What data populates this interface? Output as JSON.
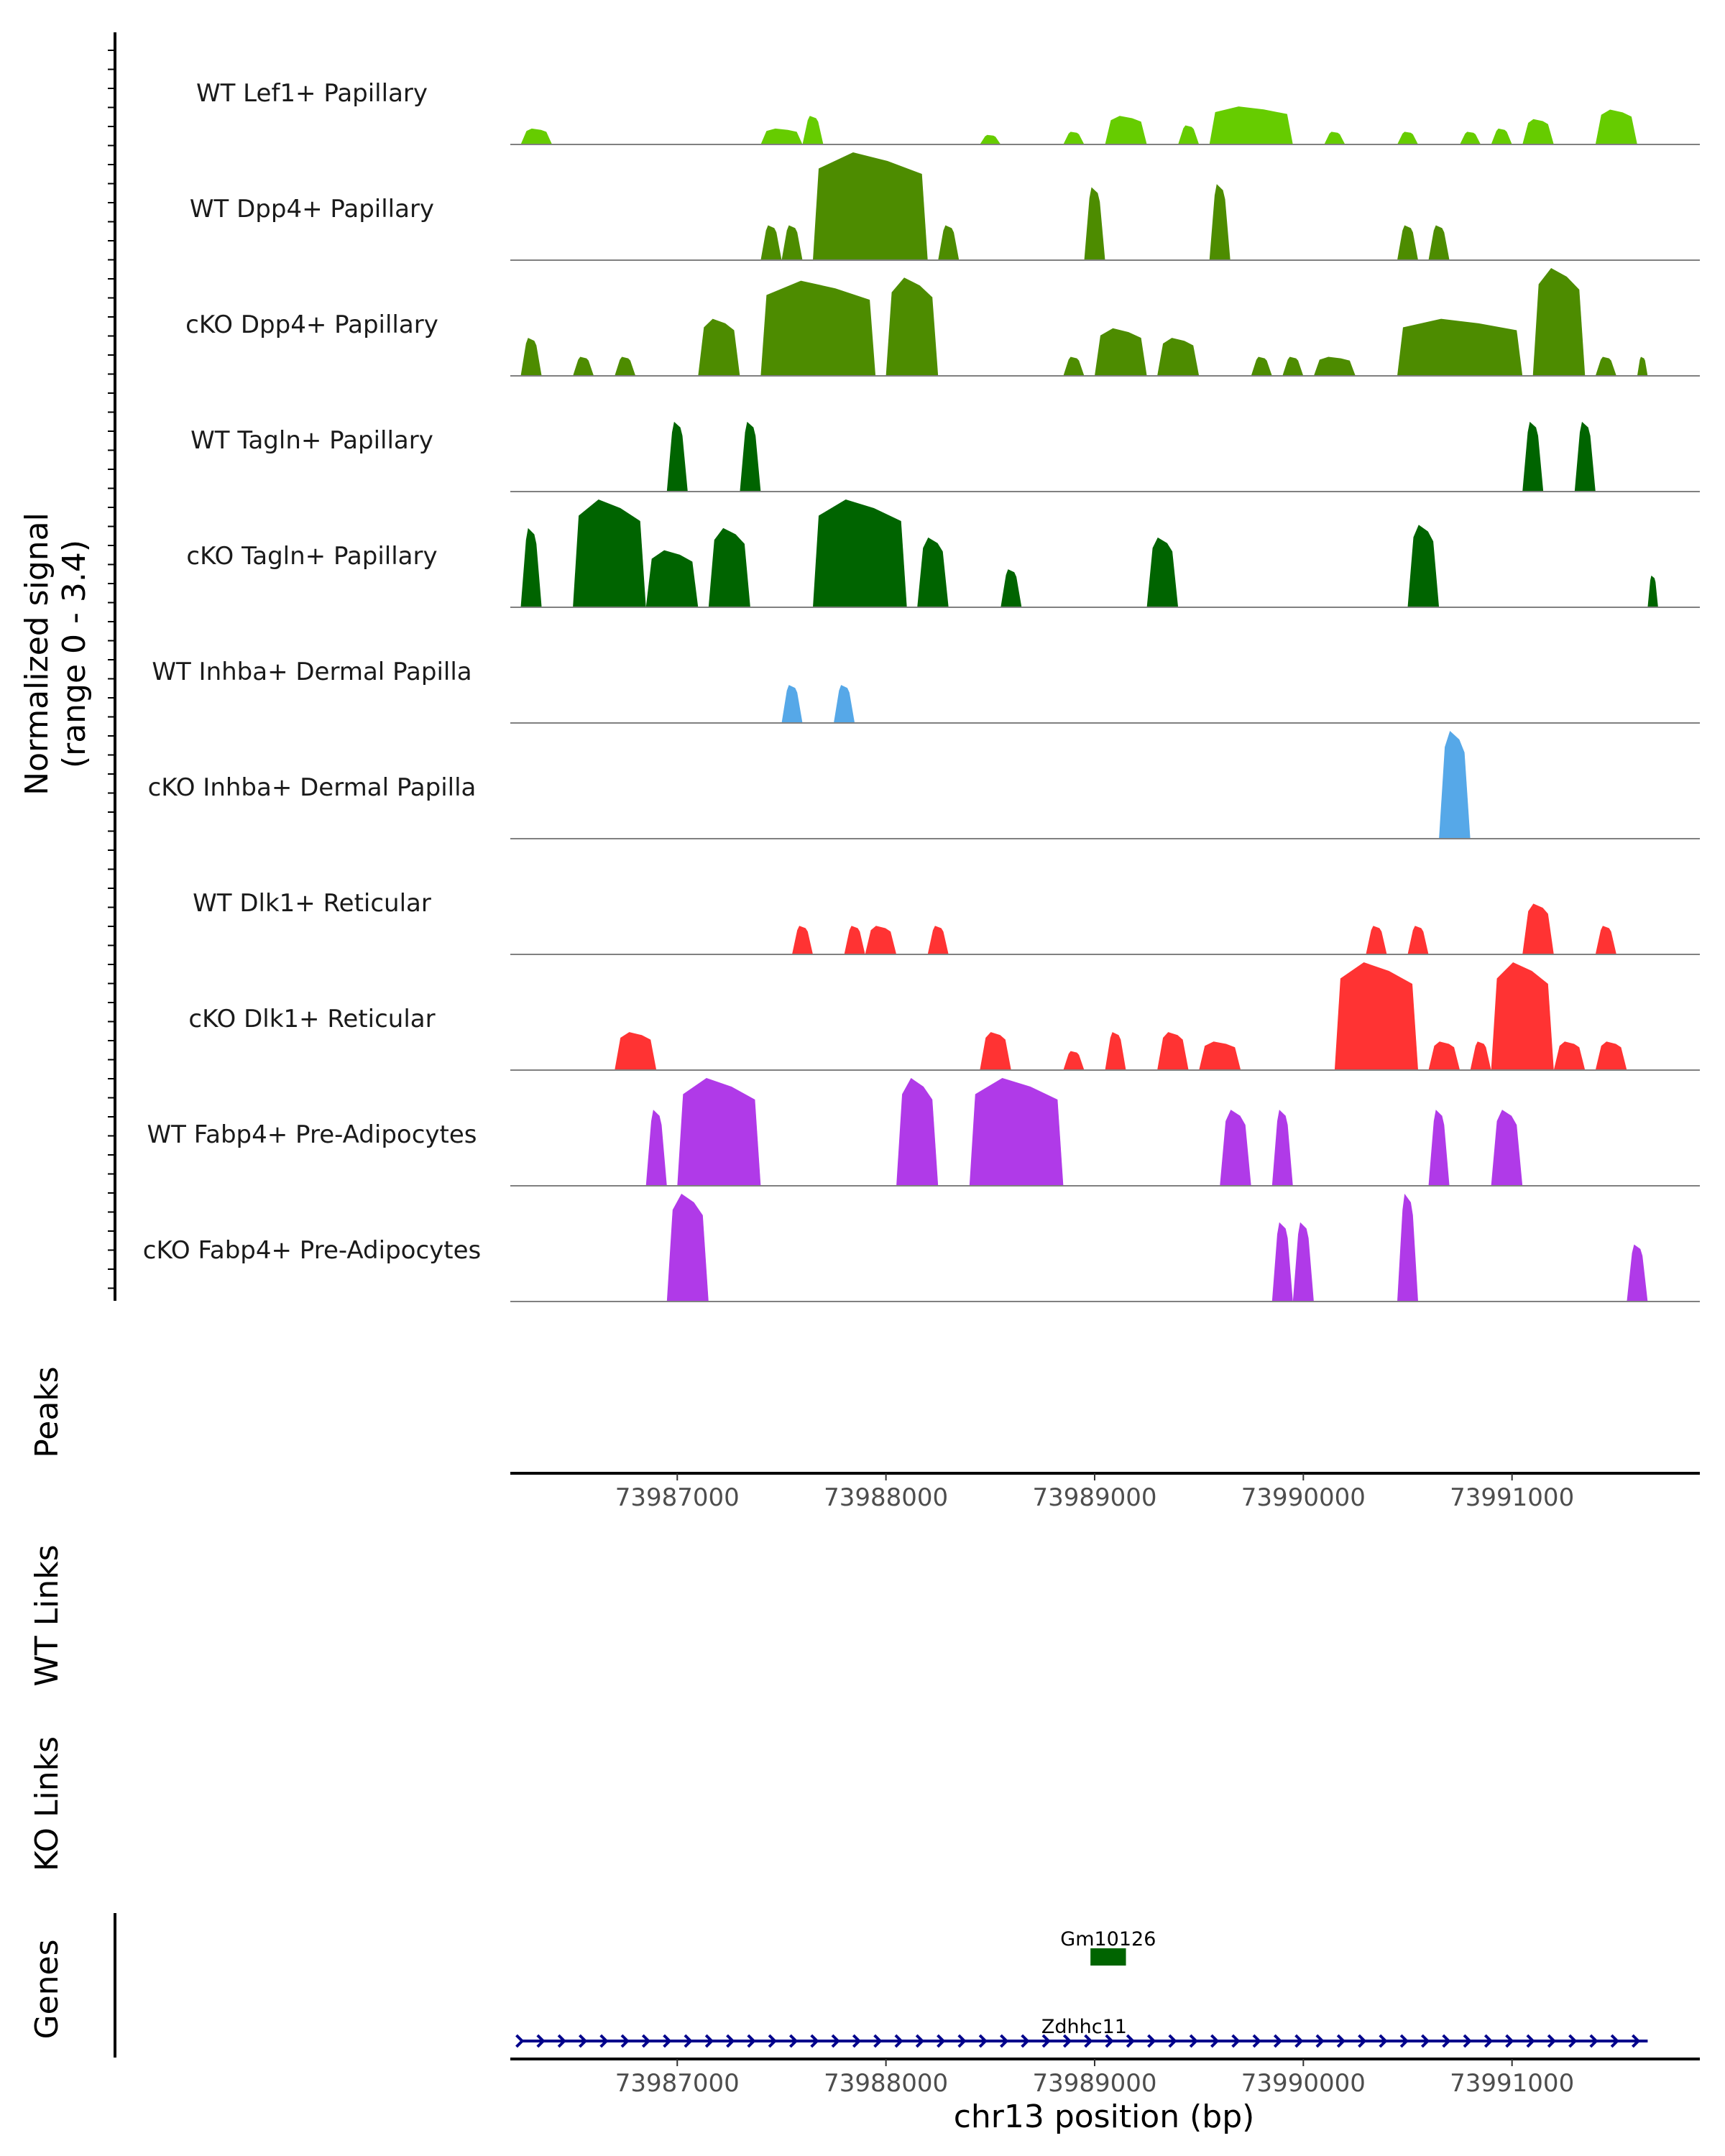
{
  "chart_data": {
    "type": "area",
    "title": "",
    "xlabel": "chr13 position (bp)",
    "ylabel": "Normalized signal\n(range 0 - 3.4)",
    "ylim": [
      0,
      3.4
    ],
    "xlim": [
      73986200,
      73991900
    ],
    "x_ticks": [
      73987000,
      73988000,
      73989000,
      73990000,
      73991000
    ],
    "panel_labels": {
      "peaks": "Peaks",
      "wt_links": "WT Links",
      "ko_links": "KO Links",
      "genes": "Genes"
    },
    "series": [
      {
        "name": "WT Lef1+ Papillary",
        "color": "#66cc00",
        "regions": [
          [
            73986250,
            73986400,
            0.5
          ],
          [
            73987400,
            73987600,
            0.5
          ],
          [
            73987600,
            73987700,
            0.9
          ],
          [
            73988450,
            73988550,
            0.3
          ],
          [
            73988850,
            73988950,
            0.4
          ],
          [
            73989050,
            73989250,
            0.9
          ],
          [
            73989400,
            73989500,
            0.6
          ],
          [
            73989550,
            73989950,
            1.2
          ],
          [
            73990100,
            73990200,
            0.4
          ],
          [
            73990450,
            73990550,
            0.4
          ],
          [
            73990750,
            73990850,
            0.4
          ],
          [
            73990900,
            73991000,
            0.5
          ],
          [
            73991050,
            73991200,
            0.8
          ],
          [
            73991400,
            73991600,
            1.1
          ]
        ]
      },
      {
        "name": "WT Dpp4+ Papillary",
        "color": "#4d8c00",
        "regions": [
          [
            73987400,
            73987500,
            1.1
          ],
          [
            73987500,
            73987600,
            1.1
          ],
          [
            73987650,
            73988200,
            3.4
          ],
          [
            73988250,
            73988350,
            1.1
          ],
          [
            73988950,
            73989050,
            2.3
          ],
          [
            73989550,
            73989650,
            2.4
          ],
          [
            73990450,
            73990550,
            1.1
          ],
          [
            73990600,
            73990700,
            1.1
          ]
        ]
      },
      {
        "name": "cKO Dpp4+ Papillary",
        "color": "#4d8c00",
        "regions": [
          [
            73986250,
            73986350,
            1.2
          ],
          [
            73986500,
            73986600,
            0.6
          ],
          [
            73986700,
            73986800,
            0.6
          ],
          [
            73987100,
            73987300,
            1.8
          ],
          [
            73987400,
            73987950,
            3.0
          ],
          [
            73988000,
            73988250,
            3.1
          ],
          [
            73988850,
            73988950,
            0.6
          ],
          [
            73989000,
            73989250,
            1.5
          ],
          [
            73989300,
            73989500,
            1.2
          ],
          [
            73989750,
            73989850,
            0.6
          ],
          [
            73989900,
            73990000,
            0.6
          ],
          [
            73990050,
            73990250,
            0.6
          ],
          [
            73990450,
            73991050,
            1.8
          ],
          [
            73991100,
            73991350,
            3.4
          ],
          [
            73991400,
            73991500,
            0.6
          ],
          [
            73991600,
            73991650,
            0.6
          ]
        ]
      },
      {
        "name": "WT Tagln+ Papillary",
        "color": "#006400",
        "regions": [
          [
            73986950,
            73987050,
            2.2
          ],
          [
            73987300,
            73987400,
            2.2
          ],
          [
            73991050,
            73991150,
            2.2
          ],
          [
            73991300,
            73991400,
            2.2
          ]
        ]
      },
      {
        "name": "cKO Tagln+ Papillary",
        "color": "#006400",
        "regions": [
          [
            73986250,
            73986350,
            2.5
          ],
          [
            73986500,
            73986850,
            3.4
          ],
          [
            73986850,
            73987100,
            1.8
          ],
          [
            73987150,
            73987350,
            2.5
          ],
          [
            73987650,
            73988100,
            3.4
          ],
          [
            73988150,
            73988300,
            2.2
          ],
          [
            73988550,
            73988650,
            1.2
          ],
          [
            73989250,
            73989400,
            2.2
          ],
          [
            73990500,
            73990650,
            2.6
          ],
          [
            73991650,
            73991700,
            1.0
          ]
        ]
      },
      {
        "name": "WT Inhba+ Dermal Papilla",
        "color": "#56a8e8",
        "regions": [
          [
            73987500,
            73987600,
            1.2
          ],
          [
            73987750,
            73987850,
            1.2
          ]
        ]
      },
      {
        "name": "cKO Inhba+ Dermal Papilla",
        "color": "#56a8e8",
        "regions": [
          [
            73990650,
            73990800,
            3.4
          ]
        ]
      },
      {
        "name": "WT Dlk1+ Reticular",
        "color": "#ff3333",
        "regions": [
          [
            73987550,
            73987650,
            0.9
          ],
          [
            73987800,
            73987900,
            0.9
          ],
          [
            73987900,
            73988050,
            0.9
          ],
          [
            73988200,
            73988300,
            0.9
          ],
          [
            73990300,
            73990400,
            0.9
          ],
          [
            73990500,
            73990600,
            0.9
          ],
          [
            73991050,
            73991200,
            1.6
          ],
          [
            73991400,
            73991500,
            0.9
          ]
        ]
      },
      {
        "name": "cKO Dlk1+ Reticular",
        "color": "#ff3333",
        "regions": [
          [
            73986700,
            73986900,
            1.2
          ],
          [
            73988450,
            73988600,
            1.2
          ],
          [
            73988850,
            73988950,
            0.6
          ],
          [
            73989050,
            73989150,
            1.2
          ],
          [
            73989300,
            73989450,
            1.2
          ],
          [
            73989500,
            73989700,
            0.9
          ],
          [
            73990150,
            73990550,
            3.4
          ],
          [
            73990600,
            73990750,
            0.9
          ],
          [
            73990800,
            73990900,
            0.9
          ],
          [
            73990900,
            73991200,
            3.4
          ],
          [
            73991200,
            73991350,
            0.9
          ],
          [
            73991400,
            73991550,
            0.9
          ]
        ]
      },
      {
        "name": "WT Fabp4+ Pre-Adipocytes",
        "color": "#b03ae8",
        "regions": [
          [
            73986850,
            73986950,
            2.4
          ],
          [
            73987000,
            73987400,
            3.4
          ],
          [
            73988050,
            73988250,
            3.4
          ],
          [
            73988400,
            73988850,
            3.4
          ],
          [
            73989600,
            73989750,
            2.4
          ],
          [
            73989850,
            73989950,
            2.4
          ],
          [
            73990600,
            73990700,
            2.4
          ],
          [
            73990900,
            73991050,
            2.4
          ]
        ]
      },
      {
        "name": "cKO Fabp4+ Pre-Adipocytes",
        "color": "#b03ae8",
        "regions": [
          [
            73986950,
            73987150,
            3.4
          ],
          [
            73989850,
            73989950,
            2.5
          ],
          [
            73989950,
            73990050,
            2.5
          ],
          [
            73990450,
            73990550,
            3.4
          ],
          [
            73991550,
            73991650,
            1.8
          ]
        ]
      }
    ],
    "genes": [
      {
        "name": "Gm10126",
        "start": 73988980,
        "end": 73989150,
        "color": "#006400",
        "type": "exon"
      },
      {
        "name": "Zdhhc11",
        "start": 73986250,
        "end": 73991650,
        "color": "#00008b",
        "type": "transcript",
        "strand": "+"
      }
    ]
  }
}
